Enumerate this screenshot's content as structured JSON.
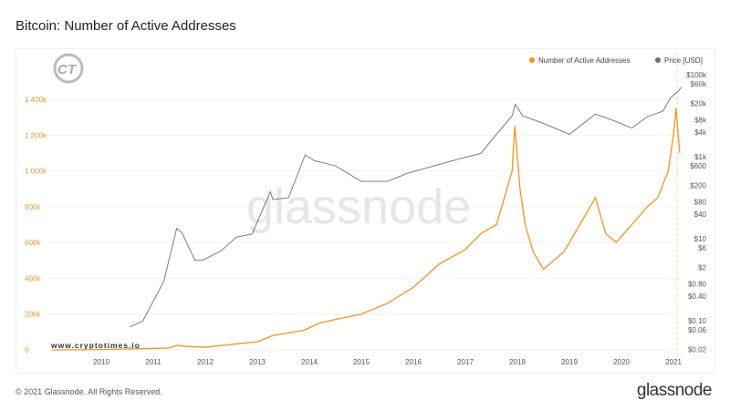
{
  "title": "Bitcoin: Number of Active Addresses",
  "footer": "© 2021 Glassnode. All Rights Reserved.",
  "brand": "glassnode",
  "watermark": "glassnode",
  "site_watermark": "www.cryptotimes.io",
  "logo_text": "CT",
  "colors": {
    "addresses": "#f7931a",
    "price": "#6e6e6e"
  },
  "chart_data": {
    "type": "line",
    "title": "Bitcoin: Number of Active Addresses",
    "legend_position": "top-right",
    "grid": true,
    "x_ticks": [
      "2010",
      "2011",
      "2012",
      "2013",
      "2014",
      "2015",
      "2016",
      "2017",
      "2018",
      "2019",
      "2020",
      "2021"
    ],
    "left_axis": {
      "ticks": [
        "0",
        "200k",
        "400k",
        "600k",
        "800k",
        "1 000k",
        "1 200k",
        "1 400k"
      ],
      "range": [
        0,
        1400000
      ]
    },
    "right_axis": {
      "scale": "log",
      "ticks": [
        "$100k",
        "$60k",
        "$20k",
        "$8k",
        "$4k",
        "$1k",
        "$600",
        "$200",
        "$80",
        "$40",
        "$10",
        "$6",
        "$2",
        "$0.80",
        "$0.40",
        "$0.10",
        "$0.06",
        "$0.02"
      ],
      "range": [
        0.02,
        100000
      ]
    },
    "series": [
      {
        "name": "Number of Active Addresses",
        "axis": "left",
        "x": [
          2009.05,
          2010.0,
          2010.5,
          2011.0,
          2011.3,
          2011.45,
          2011.6,
          2012.0,
          2012.5,
          2013.0,
          2013.3,
          2013.9,
          2014.2,
          2014.5,
          2015.0,
          2015.5,
          2016.0,
          2016.5,
          2017.0,
          2017.3,
          2017.6,
          2017.9,
          2017.95,
          2018.05,
          2018.15,
          2018.3,
          2018.5,
          2018.9,
          2019.3,
          2019.5,
          2019.7,
          2019.9,
          2020.2,
          2020.5,
          2020.7,
          2020.9,
          2021.0,
          2021.05,
          2021.12
        ],
        "y": [
          0,
          2000,
          5000,
          8000,
          10000,
          25000,
          20000,
          15000,
          30000,
          45000,
          80000,
          110000,
          150000,
          170000,
          200000,
          260000,
          350000,
          480000,
          560000,
          650000,
          700000,
          1000000,
          1250000,
          900000,
          700000,
          550000,
          450000,
          550000,
          750000,
          850000,
          650000,
          600000,
          700000,
          800000,
          850000,
          1000000,
          1200000,
          1350000,
          1100000
        ]
      },
      {
        "name": "Price [USD]",
        "axis": "right",
        "x": [
          2010.55,
          2010.8,
          2011.0,
          2011.2,
          2011.45,
          2011.55,
          2011.8,
          2011.95,
          2012.3,
          2012.6,
          2012.9,
          2013.25,
          2013.3,
          2013.6,
          2013.92,
          2014.1,
          2014.5,
          2015.0,
          2015.5,
          2015.9,
          2016.5,
          2016.9,
          2017.3,
          2017.5,
          2017.9,
          2017.96,
          2018.1,
          2018.5,
          2018.9,
          2019.0,
          2019.5,
          2019.9,
          2020.2,
          2020.5,
          2020.8,
          2020.95,
          2021.1,
          2021.15
        ],
        "y": [
          0.07,
          0.1,
          0.3,
          0.9,
          18,
          14,
          3,
          3,
          5,
          11,
          13,
          140,
          90,
          100,
          1100,
          800,
          600,
          250,
          250,
          400,
          650,
          900,
          1200,
          2500,
          10000,
          19000,
          10000,
          6500,
          4000,
          3500,
          11000,
          7200,
          5000,
          9500,
          13000,
          28000,
          40000,
          50000
        ]
      }
    ]
  }
}
